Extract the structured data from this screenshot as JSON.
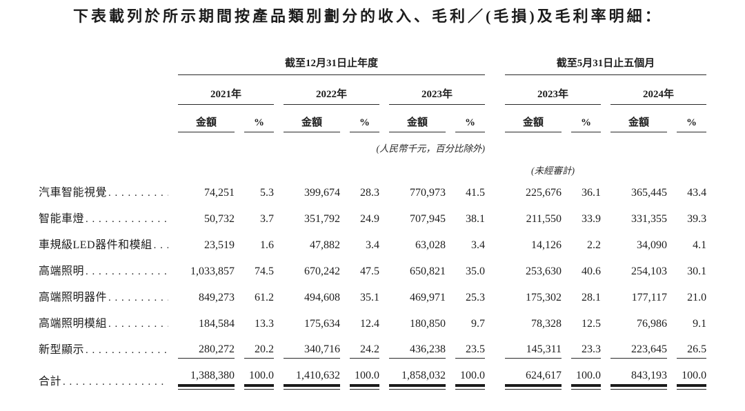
{
  "title": "下表載列於所示期間按產品類別劃分的收入、毛利／(毛損)及毛利率明細：",
  "table": {
    "col_groups": [
      {
        "label": "截至12月31日止年度",
        "years": [
          "2021年",
          "2022年",
          "2023年"
        ]
      },
      {
        "label": "截至5月31日止五個月",
        "years": [
          "2023年",
          "2024年"
        ]
      }
    ],
    "sub_headers": {
      "amount": "金額",
      "percent": "%"
    },
    "notes": {
      "units": "(人民幣千元，百分比除外)",
      "unaudited": "(未經審計)"
    },
    "rows": [
      {
        "label": "汽車智能視覺",
        "bold": true,
        "underline": "none",
        "values": [
          "74,251",
          "5.3",
          "399,674",
          "28.3",
          "770,973",
          "41.5",
          "225,676",
          "36.1",
          "365,445",
          "43.4"
        ]
      },
      {
        "label": "智能車燈",
        "bold": false,
        "underline": "none",
        "values": [
          "50,732",
          "3.7",
          "351,792",
          "24.9",
          "707,945",
          "38.1",
          "211,550",
          "33.9",
          "331,355",
          "39.3"
        ]
      },
      {
        "label": "車規級LED器件和模組",
        "bold": false,
        "underline": "none",
        "values": [
          "23,519",
          "1.6",
          "47,882",
          "3.4",
          "63,028",
          "3.4",
          "14,126",
          "2.2",
          "34,090",
          "4.1"
        ]
      },
      {
        "label": "高端照明",
        "bold": true,
        "underline": "none",
        "values": [
          "1,033,857",
          "74.5",
          "670,242",
          "47.5",
          "650,821",
          "35.0",
          "253,630",
          "40.6",
          "254,103",
          "30.1"
        ]
      },
      {
        "label": "高端照明器件",
        "bold": false,
        "underline": "none",
        "values": [
          "849,273",
          "61.2",
          "494,608",
          "35.1",
          "469,971",
          "25.3",
          "175,302",
          "28.1",
          "177,117",
          "21.0"
        ]
      },
      {
        "label": "高端照明模組",
        "bold": false,
        "underline": "none",
        "values": [
          "184,584",
          "13.3",
          "175,634",
          "12.4",
          "180,850",
          "9.7",
          "78,328",
          "12.5",
          "76,986",
          "9.1"
        ]
      },
      {
        "label": "新型顯示",
        "bold": true,
        "underline": "single",
        "values": [
          "280,272",
          "20.2",
          "340,716",
          "24.2",
          "436,238",
          "23.5",
          "145,311",
          "23.3",
          "223,645",
          "26.5"
        ]
      }
    ],
    "total_row": {
      "label": "合計",
      "bold": true,
      "underline": "double",
      "values": [
        "1,388,380",
        "100.0",
        "1,410,632",
        "100.0",
        "1,858,032",
        "100.0",
        "624,617",
        "100.0",
        "843,193",
        "100.0"
      ]
    }
  },
  "colors": {
    "text": "#1d1d1d",
    "rule": "#262626",
    "background": "#ffffff"
  }
}
